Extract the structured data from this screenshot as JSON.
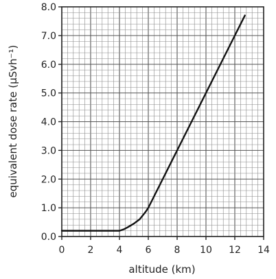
{
  "chart_data": {
    "type": "line",
    "title": "",
    "xlabel": "altitude (km)",
    "ylabel": "equivalent dose rate (µSvh⁻¹)",
    "xlim": [
      0,
      14
    ],
    "ylim": [
      0,
      8
    ],
    "x_ticks": [
      0,
      2,
      4,
      6,
      8,
      10,
      12,
      14
    ],
    "y_ticks": [
      "0.0",
      "1.0",
      "2.0",
      "3.0",
      "4.0",
      "5.0",
      "6.0",
      "7.0",
      "8.0"
    ],
    "grid": true,
    "grid_minor_x": 0.4,
    "grid_minor_y": 0.2,
    "legend": "none",
    "series": [
      {
        "color": "#111111",
        "points": [
          [
            0,
            0.2
          ],
          [
            4.0,
            0.2
          ],
          [
            4.3,
            0.25
          ],
          [
            4.6,
            0.33
          ],
          [
            5.0,
            0.45
          ],
          [
            5.4,
            0.6
          ],
          [
            5.8,
            0.85
          ],
          [
            6.0,
            1.0
          ],
          [
            7.0,
            2.0
          ],
          [
            8.0,
            3.0
          ],
          [
            9.0,
            4.0
          ],
          [
            10.0,
            5.0
          ],
          [
            11.0,
            6.0
          ],
          [
            12.0,
            7.0
          ],
          [
            12.7,
            7.7
          ]
        ]
      }
    ]
  }
}
